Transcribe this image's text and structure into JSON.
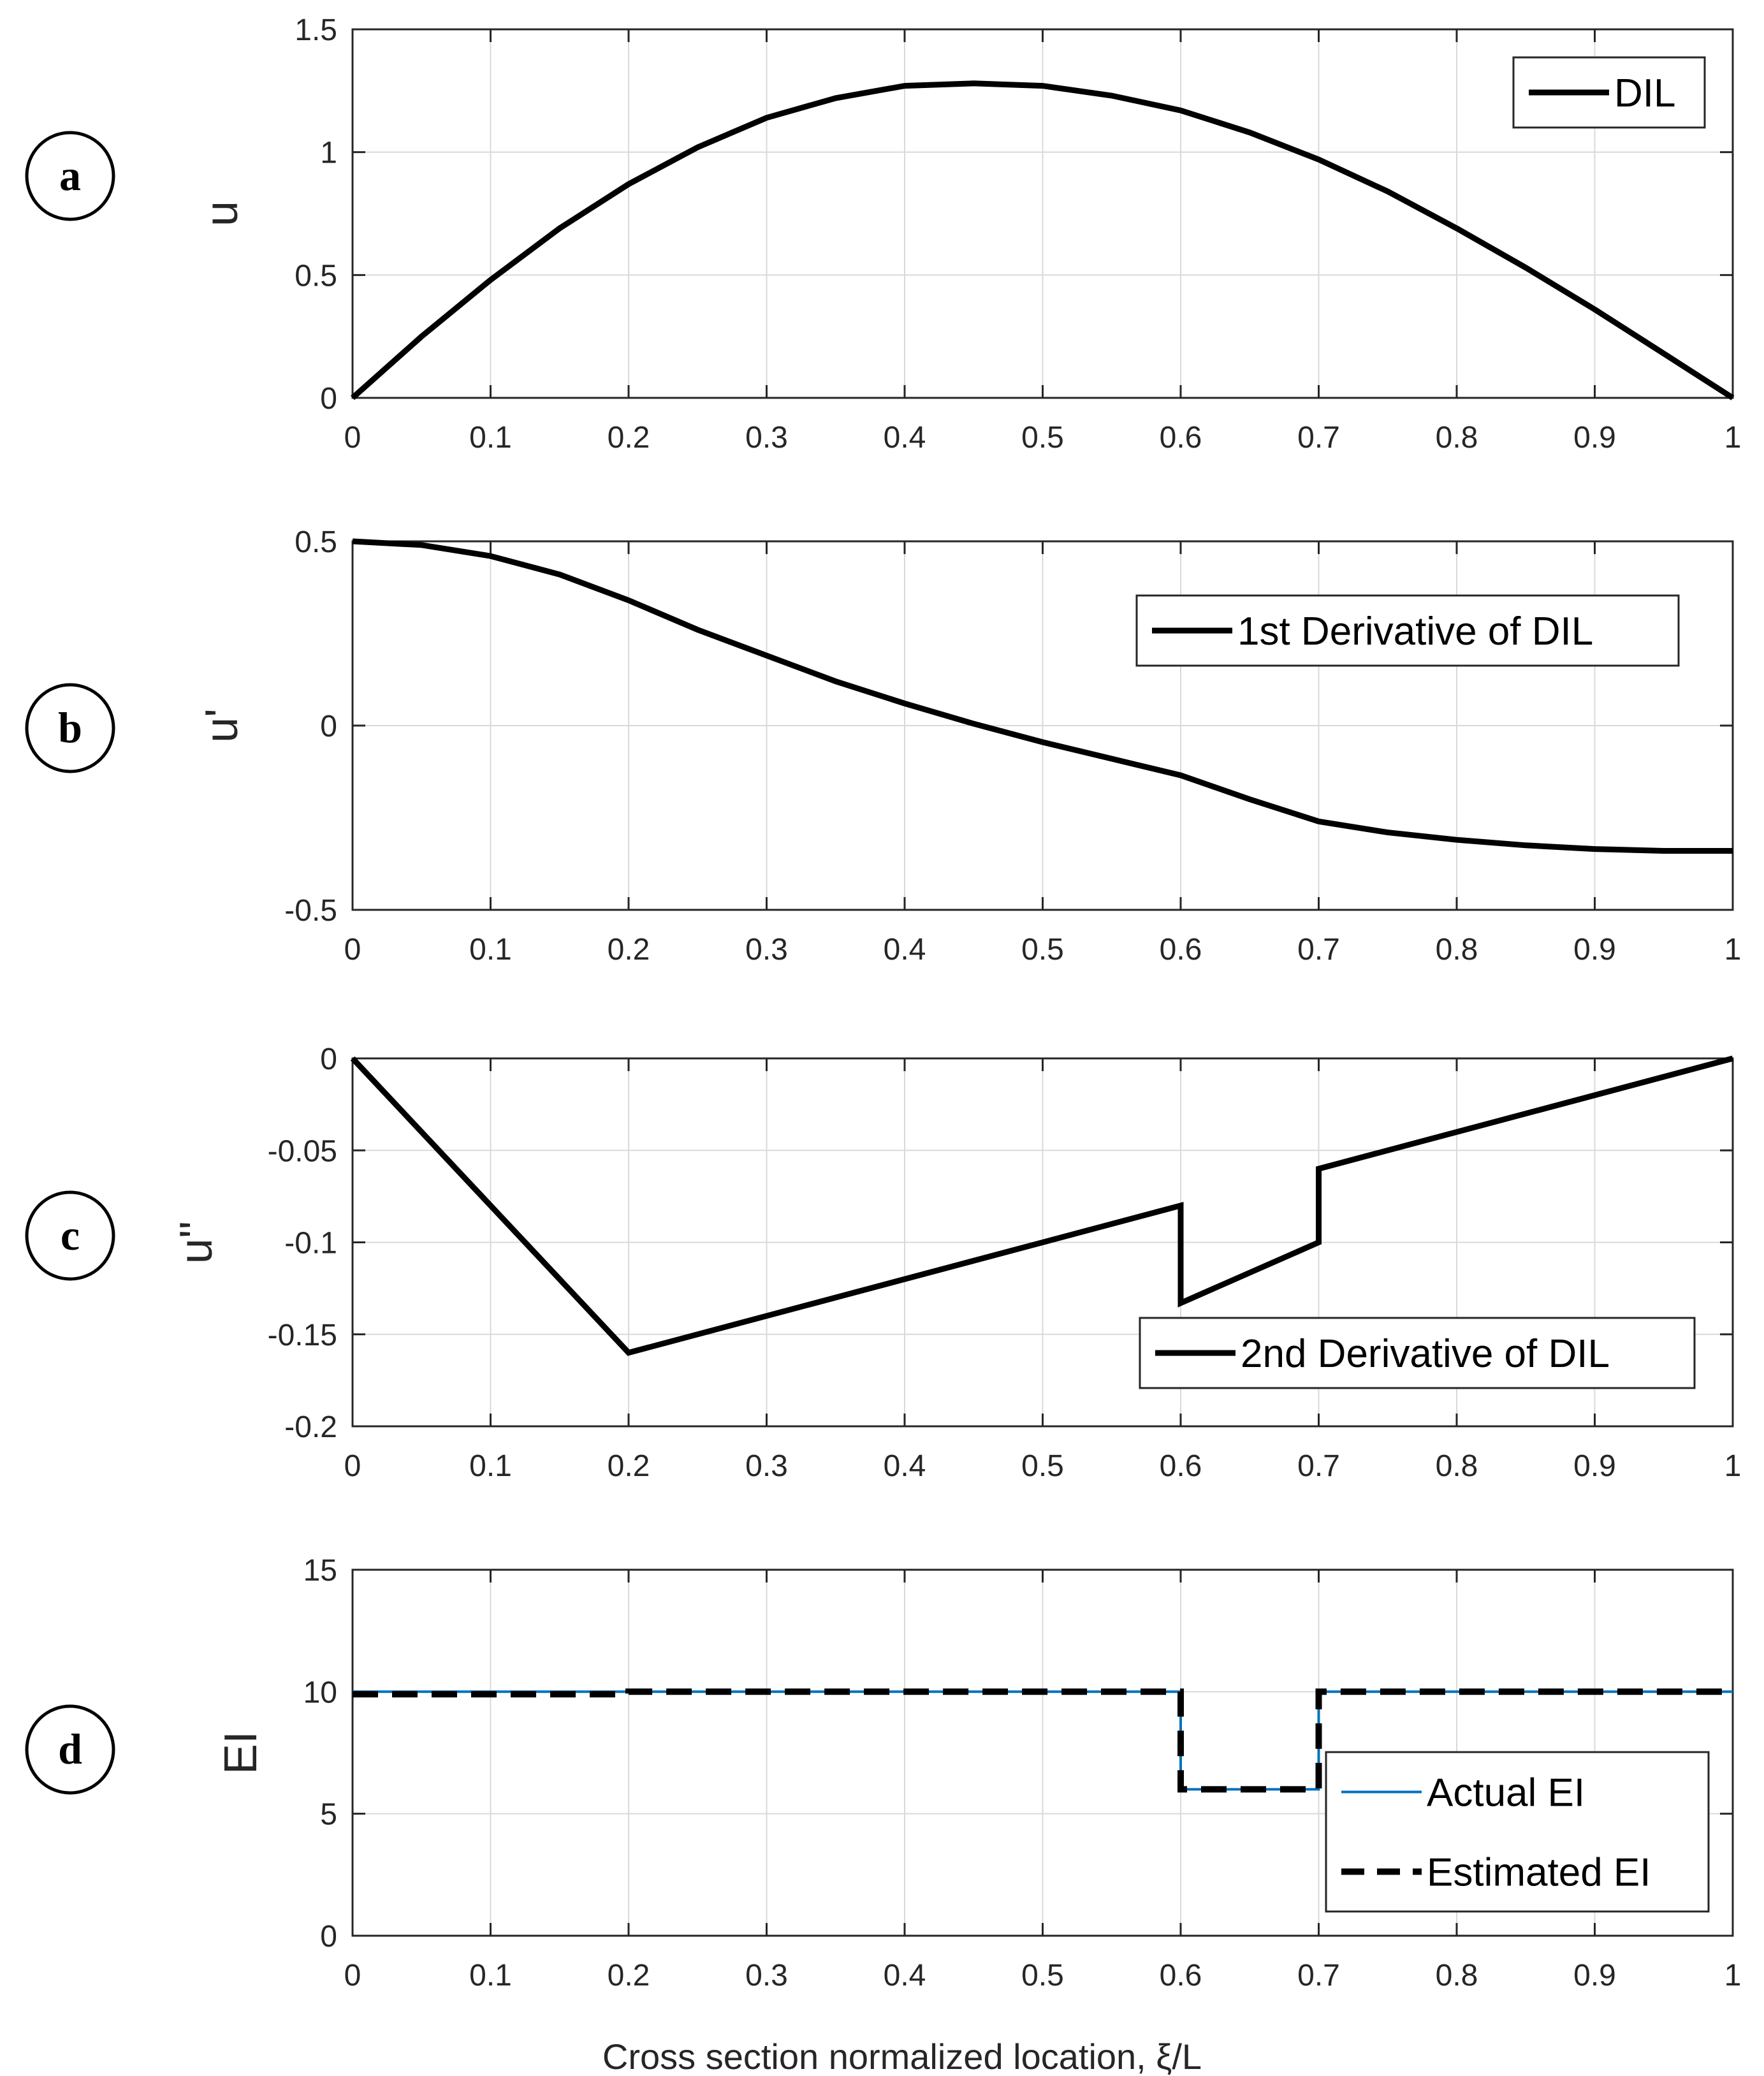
{
  "colors": {
    "grid": "#d9d9d9",
    "axis": "#262626",
    "series_black": "#000000",
    "series_blue": "#0072bd"
  },
  "xlabel": "Cross section normalized location, ξ/L",
  "chart_data": [
    {
      "type": "line",
      "panel": "a",
      "ylabel": "u",
      "xlim": [
        0,
        1
      ],
      "ylim": [
        0,
        1.5
      ],
      "xticks": [
        0,
        0.1,
        0.2,
        0.3,
        0.4,
        0.5,
        0.6,
        0.7,
        0.8,
        0.9,
        1
      ],
      "yticks": [
        0,
        0.5,
        1,
        1.5
      ],
      "legend_position": "top-right",
      "series": [
        {
          "name": "DIL",
          "style": "solid-thick",
          "color": "#000000",
          "x": [
            0,
            0.05,
            0.1,
            0.15,
            0.2,
            0.25,
            0.3,
            0.35,
            0.4,
            0.45,
            0.5,
            0.55,
            0.6,
            0.65,
            0.7,
            0.75,
            0.8,
            0.85,
            0.9,
            0.95,
            1
          ],
          "y": [
            0,
            0.25,
            0.48,
            0.69,
            0.87,
            1.02,
            1.14,
            1.22,
            1.27,
            1.28,
            1.27,
            1.23,
            1.17,
            1.08,
            0.97,
            0.84,
            0.69,
            0.53,
            0.36,
            0.18,
            0
          ]
        }
      ]
    },
    {
      "type": "line",
      "panel": "b",
      "ylabel": "u'",
      "xlim": [
        0,
        1
      ],
      "ylim": [
        -0.5,
        0.5
      ],
      "xticks": [
        0,
        0.1,
        0.2,
        0.3,
        0.4,
        0.5,
        0.6,
        0.7,
        0.8,
        0.9,
        1
      ],
      "yticks": [
        -0.5,
        0,
        0.5
      ],
      "legend_position": "top-right",
      "series": [
        {
          "name": "1st Derivative of DIL",
          "style": "solid-thick",
          "color": "#000000",
          "x": [
            0,
            0.05,
            0.1,
            0.15,
            0.2,
            0.25,
            0.3,
            0.35,
            0.4,
            0.45,
            0.5,
            0.55,
            0.6,
            0.65,
            0.7,
            0.75,
            0.8,
            0.85,
            0.9,
            0.95,
            1
          ],
          "y": [
            0.5,
            0.49,
            0.46,
            0.41,
            0.34,
            0.26,
            0.19,
            0.12,
            0.06,
            0.005,
            -0.045,
            -0.09,
            -0.135,
            -0.2,
            -0.26,
            -0.29,
            -0.31,
            -0.325,
            -0.335,
            -0.34,
            -0.34
          ]
        }
      ]
    },
    {
      "type": "line",
      "panel": "c",
      "ylabel": "u''",
      "xlim": [
        0,
        1
      ],
      "ylim": [
        -0.2,
        0
      ],
      "xticks": [
        0,
        0.1,
        0.2,
        0.3,
        0.4,
        0.5,
        0.6,
        0.7,
        0.8,
        0.9,
        1
      ],
      "yticks": [
        -0.2,
        -0.15,
        -0.1,
        -0.05,
        0
      ],
      "legend_position": "bottom-right",
      "series": [
        {
          "name": "2nd Derivative of DIL",
          "style": "solid-thick",
          "color": "#000000",
          "x": [
            0,
            0.2,
            0.6,
            0.6,
            0.7,
            0.7,
            1
          ],
          "y": [
            0,
            -0.16,
            -0.08,
            -0.133,
            -0.1,
            -0.06,
            0
          ]
        }
      ]
    },
    {
      "type": "line",
      "panel": "d",
      "ylabel": "EI",
      "xlim": [
        0,
        1
      ],
      "ylim": [
        0,
        15
      ],
      "xticks": [
        0,
        0.1,
        0.2,
        0.3,
        0.4,
        0.5,
        0.6,
        0.7,
        0.8,
        0.9,
        1
      ],
      "yticks": [
        0,
        5,
        10,
        15
      ],
      "legend_position": "bottom-right",
      "series": [
        {
          "name": "Actual EI",
          "style": "solid-thin",
          "color": "#0072bd",
          "x": [
            0,
            0.6,
            0.6,
            0.7,
            0.7,
            1
          ],
          "y": [
            10,
            10,
            6,
            6,
            10,
            10
          ]
        },
        {
          "name": "Estimated EI",
          "style": "dashed-thick",
          "color": "#000000",
          "x": [
            0,
            0.2,
            0.2,
            0.6,
            0.6,
            0.7,
            0.7,
            1
          ],
          "y": [
            9.9,
            9.9,
            10,
            10,
            6,
            6,
            10,
            10
          ]
        }
      ]
    }
  ]
}
